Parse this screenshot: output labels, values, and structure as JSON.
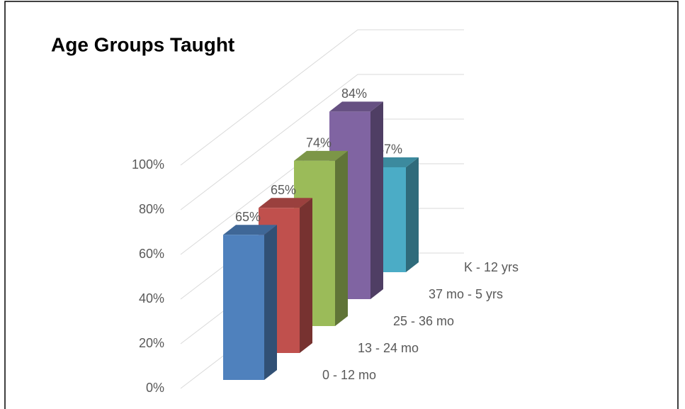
{
  "chart_data": {
    "type": "bar3d",
    "title": "Age Groups Taught",
    "categories": [
      "0 - 12 mo",
      "13 - 24 mo",
      "25 - 36 mo",
      "37 mo - 5 yrs",
      "K - 12 yrs"
    ],
    "values": [
      65,
      65,
      74,
      84,
      47
    ],
    "value_labels": [
      "65%",
      "65%",
      "74%",
      "84%",
      "47%"
    ],
    "colors": [
      "#4f81bd",
      "#c0504d",
      "#9bbb59",
      "#8064a2",
      "#4bacc6"
    ],
    "ylim": [
      0,
      100
    ],
    "yticks": [
      {
        "value": 0,
        "label": "0%"
      },
      {
        "value": 20,
        "label": "20%"
      },
      {
        "value": 40,
        "label": "40%"
      },
      {
        "value": 60,
        "label": "60%"
      },
      {
        "value": 80,
        "label": "80%"
      },
      {
        "value": 100,
        "label": "100%"
      }
    ],
    "grid": true
  }
}
